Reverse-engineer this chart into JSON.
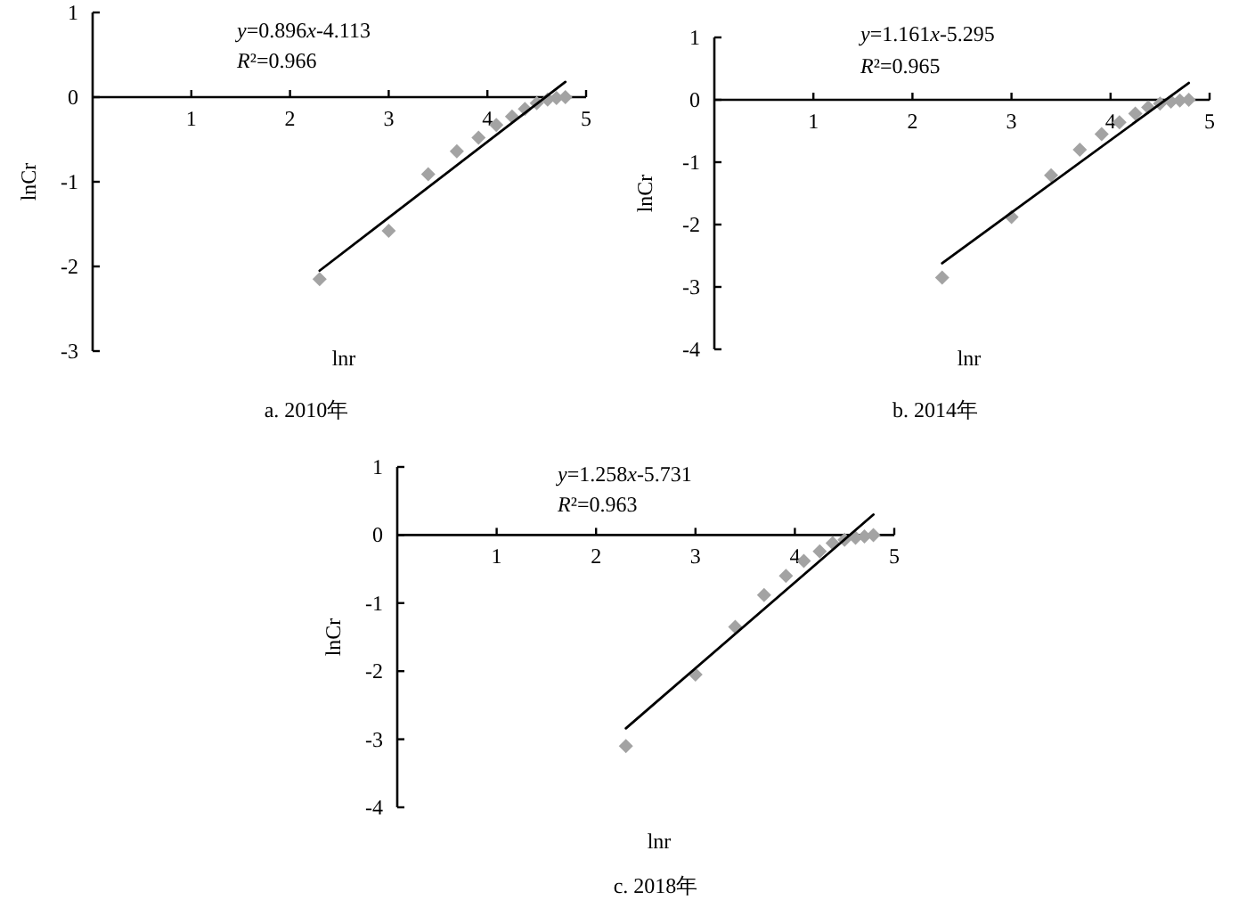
{
  "chart_data": [
    {
      "type": "scatter",
      "title": "a. 2010年",
      "xlabel": "lnr",
      "ylabel": "lnCr",
      "annotations": [
        "y=0.896x-4.113",
        "R²=0.966"
      ],
      "xlim": [
        0,
        5
      ],
      "ylim": [
        -3,
        1
      ],
      "xticks": [
        1,
        2,
        3,
        4,
        5
      ],
      "yticks": [
        -3,
        -2,
        -1,
        0,
        1
      ],
      "series": [
        {
          "type": "scatter",
          "marker": "diamond",
          "color": "#a3a3a3",
          "x": [
            2.3,
            3.0,
            3.4,
            3.69,
            3.91,
            4.09,
            4.25,
            4.38,
            4.5,
            4.61,
            4.7,
            4.79
          ],
          "values": [
            -2.15,
            -1.58,
            -0.91,
            -0.64,
            -0.48,
            -0.33,
            -0.23,
            -0.14,
            -0.07,
            -0.03,
            -0.01,
            0.0
          ]
        },
        {
          "type": "line",
          "color": "#000000",
          "x": [
            2.3,
            4.79
          ],
          "values": [
            -2.05,
            0.18
          ]
        }
      ]
    },
    {
      "type": "scatter",
      "title": "b. 2014年",
      "xlabel": "lnr",
      "ylabel": "lnCr",
      "annotations": [
        "y=1.161x-5.295",
        "R²=0.965"
      ],
      "xlim": [
        0,
        5
      ],
      "ylim": [
        -4,
        1
      ],
      "xticks": [
        1,
        2,
        3,
        4,
        5
      ],
      "yticks": [
        -4,
        -3,
        -2,
        -1,
        0,
        1
      ],
      "series": [
        {
          "type": "scatter",
          "marker": "diamond",
          "color": "#a3a3a3",
          "x": [
            2.3,
            3.0,
            3.4,
            3.69,
            3.91,
            4.09,
            4.25,
            4.38,
            4.5,
            4.61,
            4.7,
            4.79
          ],
          "values": [
            -2.85,
            -1.88,
            -1.21,
            -0.8,
            -0.55,
            -0.36,
            -0.22,
            -0.12,
            -0.06,
            -0.03,
            -0.01,
            0.0
          ]
        },
        {
          "type": "line",
          "color": "#000000",
          "x": [
            2.3,
            4.79
          ],
          "values": [
            -2.62,
            0.27
          ]
        }
      ]
    },
    {
      "type": "scatter",
      "title": "c. 2018年",
      "xlabel": "lnr",
      "ylabel": "lnCr",
      "annotations": [
        "y=1.258x-5.731",
        "R²=0.963"
      ],
      "xlim": [
        0,
        5
      ],
      "ylim": [
        -4,
        1
      ],
      "xticks": [
        1,
        2,
        3,
        4,
        5
      ],
      "yticks": [
        -4,
        -3,
        -2,
        -1,
        0,
        1
      ],
      "series": [
        {
          "type": "scatter",
          "marker": "diamond",
          "color": "#a3a3a3",
          "x": [
            2.3,
            3.0,
            3.4,
            3.69,
            3.91,
            4.09,
            4.25,
            4.38,
            4.5,
            4.61,
            4.7,
            4.79
          ],
          "values": [
            -3.1,
            -2.05,
            -1.35,
            -0.88,
            -0.6,
            -0.38,
            -0.24,
            -0.12,
            -0.07,
            -0.04,
            -0.02,
            0.0
          ]
        },
        {
          "type": "line",
          "color": "#000000",
          "x": [
            2.3,
            4.79
          ],
          "values": [
            -2.84,
            0.3
          ]
        }
      ]
    }
  ]
}
